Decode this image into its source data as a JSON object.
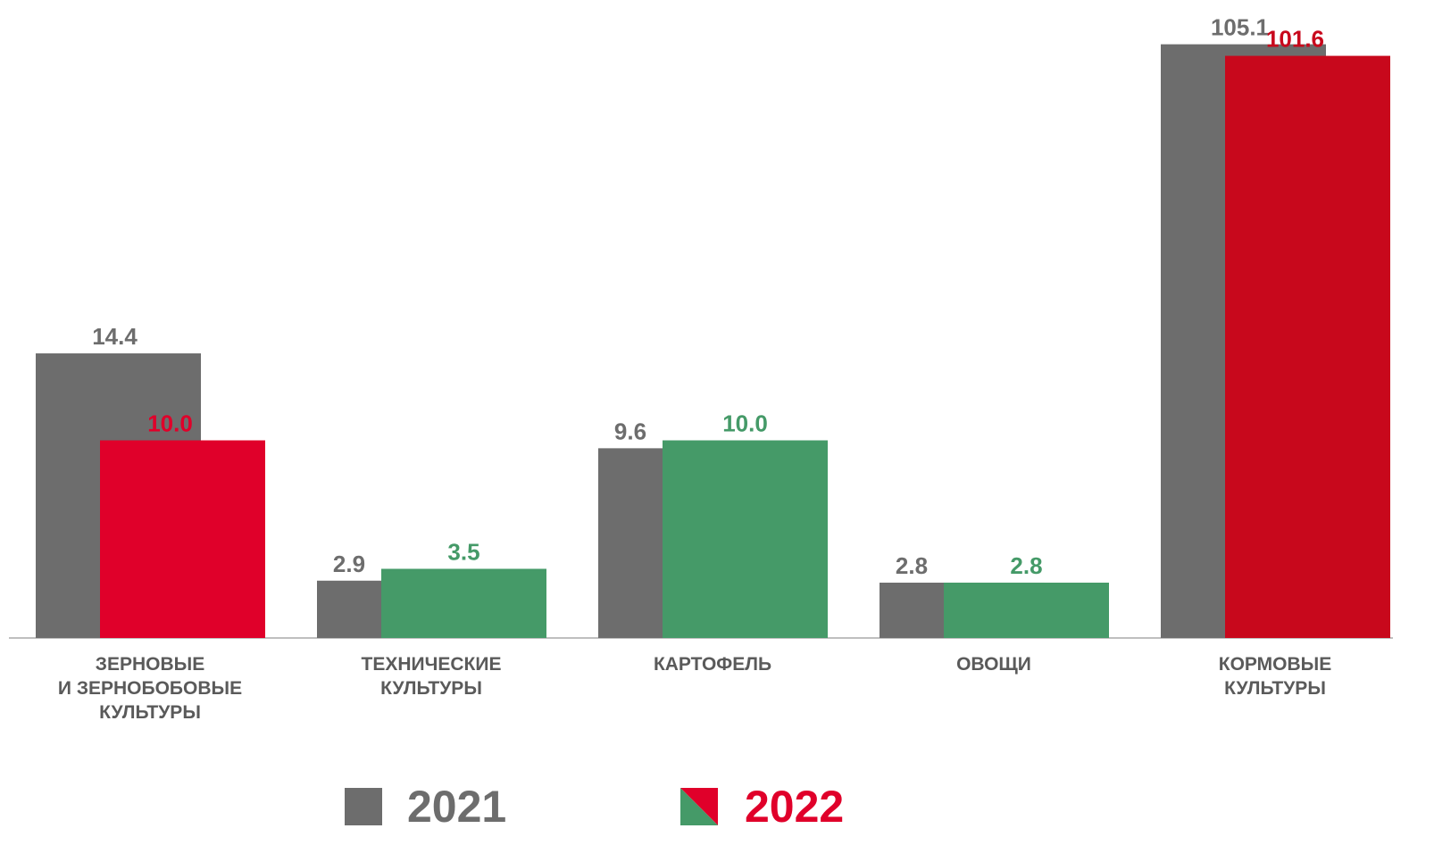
{
  "chart_data": {
    "type": "bar",
    "categories": [
      "ЗЕРНОВЫЕ\nИ ЗЕРНОБОБОВЫЕ\nКУЛЬТУРЫ",
      "ТЕХНИЧЕСКИЕ\nКУЛЬТУРЫ",
      "КАРТОФЕЛЬ",
      "ОВОЩИ",
      "КОРМОВЫЕ\nКУЛЬТУРЫ"
    ],
    "series": [
      {
        "name": "2021",
        "color": "#6d6d6d",
        "colors": [
          "#6d6d6d",
          "#6d6d6d",
          "#6d6d6d",
          "#6d6d6d",
          "#6d6d6d"
        ],
        "values": [
          14.4,
          2.9,
          9.6,
          2.8,
          105.1
        ]
      },
      {
        "name": "2022",
        "color": "#e0002a",
        "colors": [
          "#e0002a",
          "#459a68",
          "#459a68",
          "#459a68",
          "#c8081c"
        ],
        "values": [
          10,
          3.5,
          10,
          2.8,
          101.6
        ],
        "value_labels": [
          "10.0",
          "3.5",
          "10.0",
          "2.8",
          "101.6"
        ]
      }
    ]
  }
}
